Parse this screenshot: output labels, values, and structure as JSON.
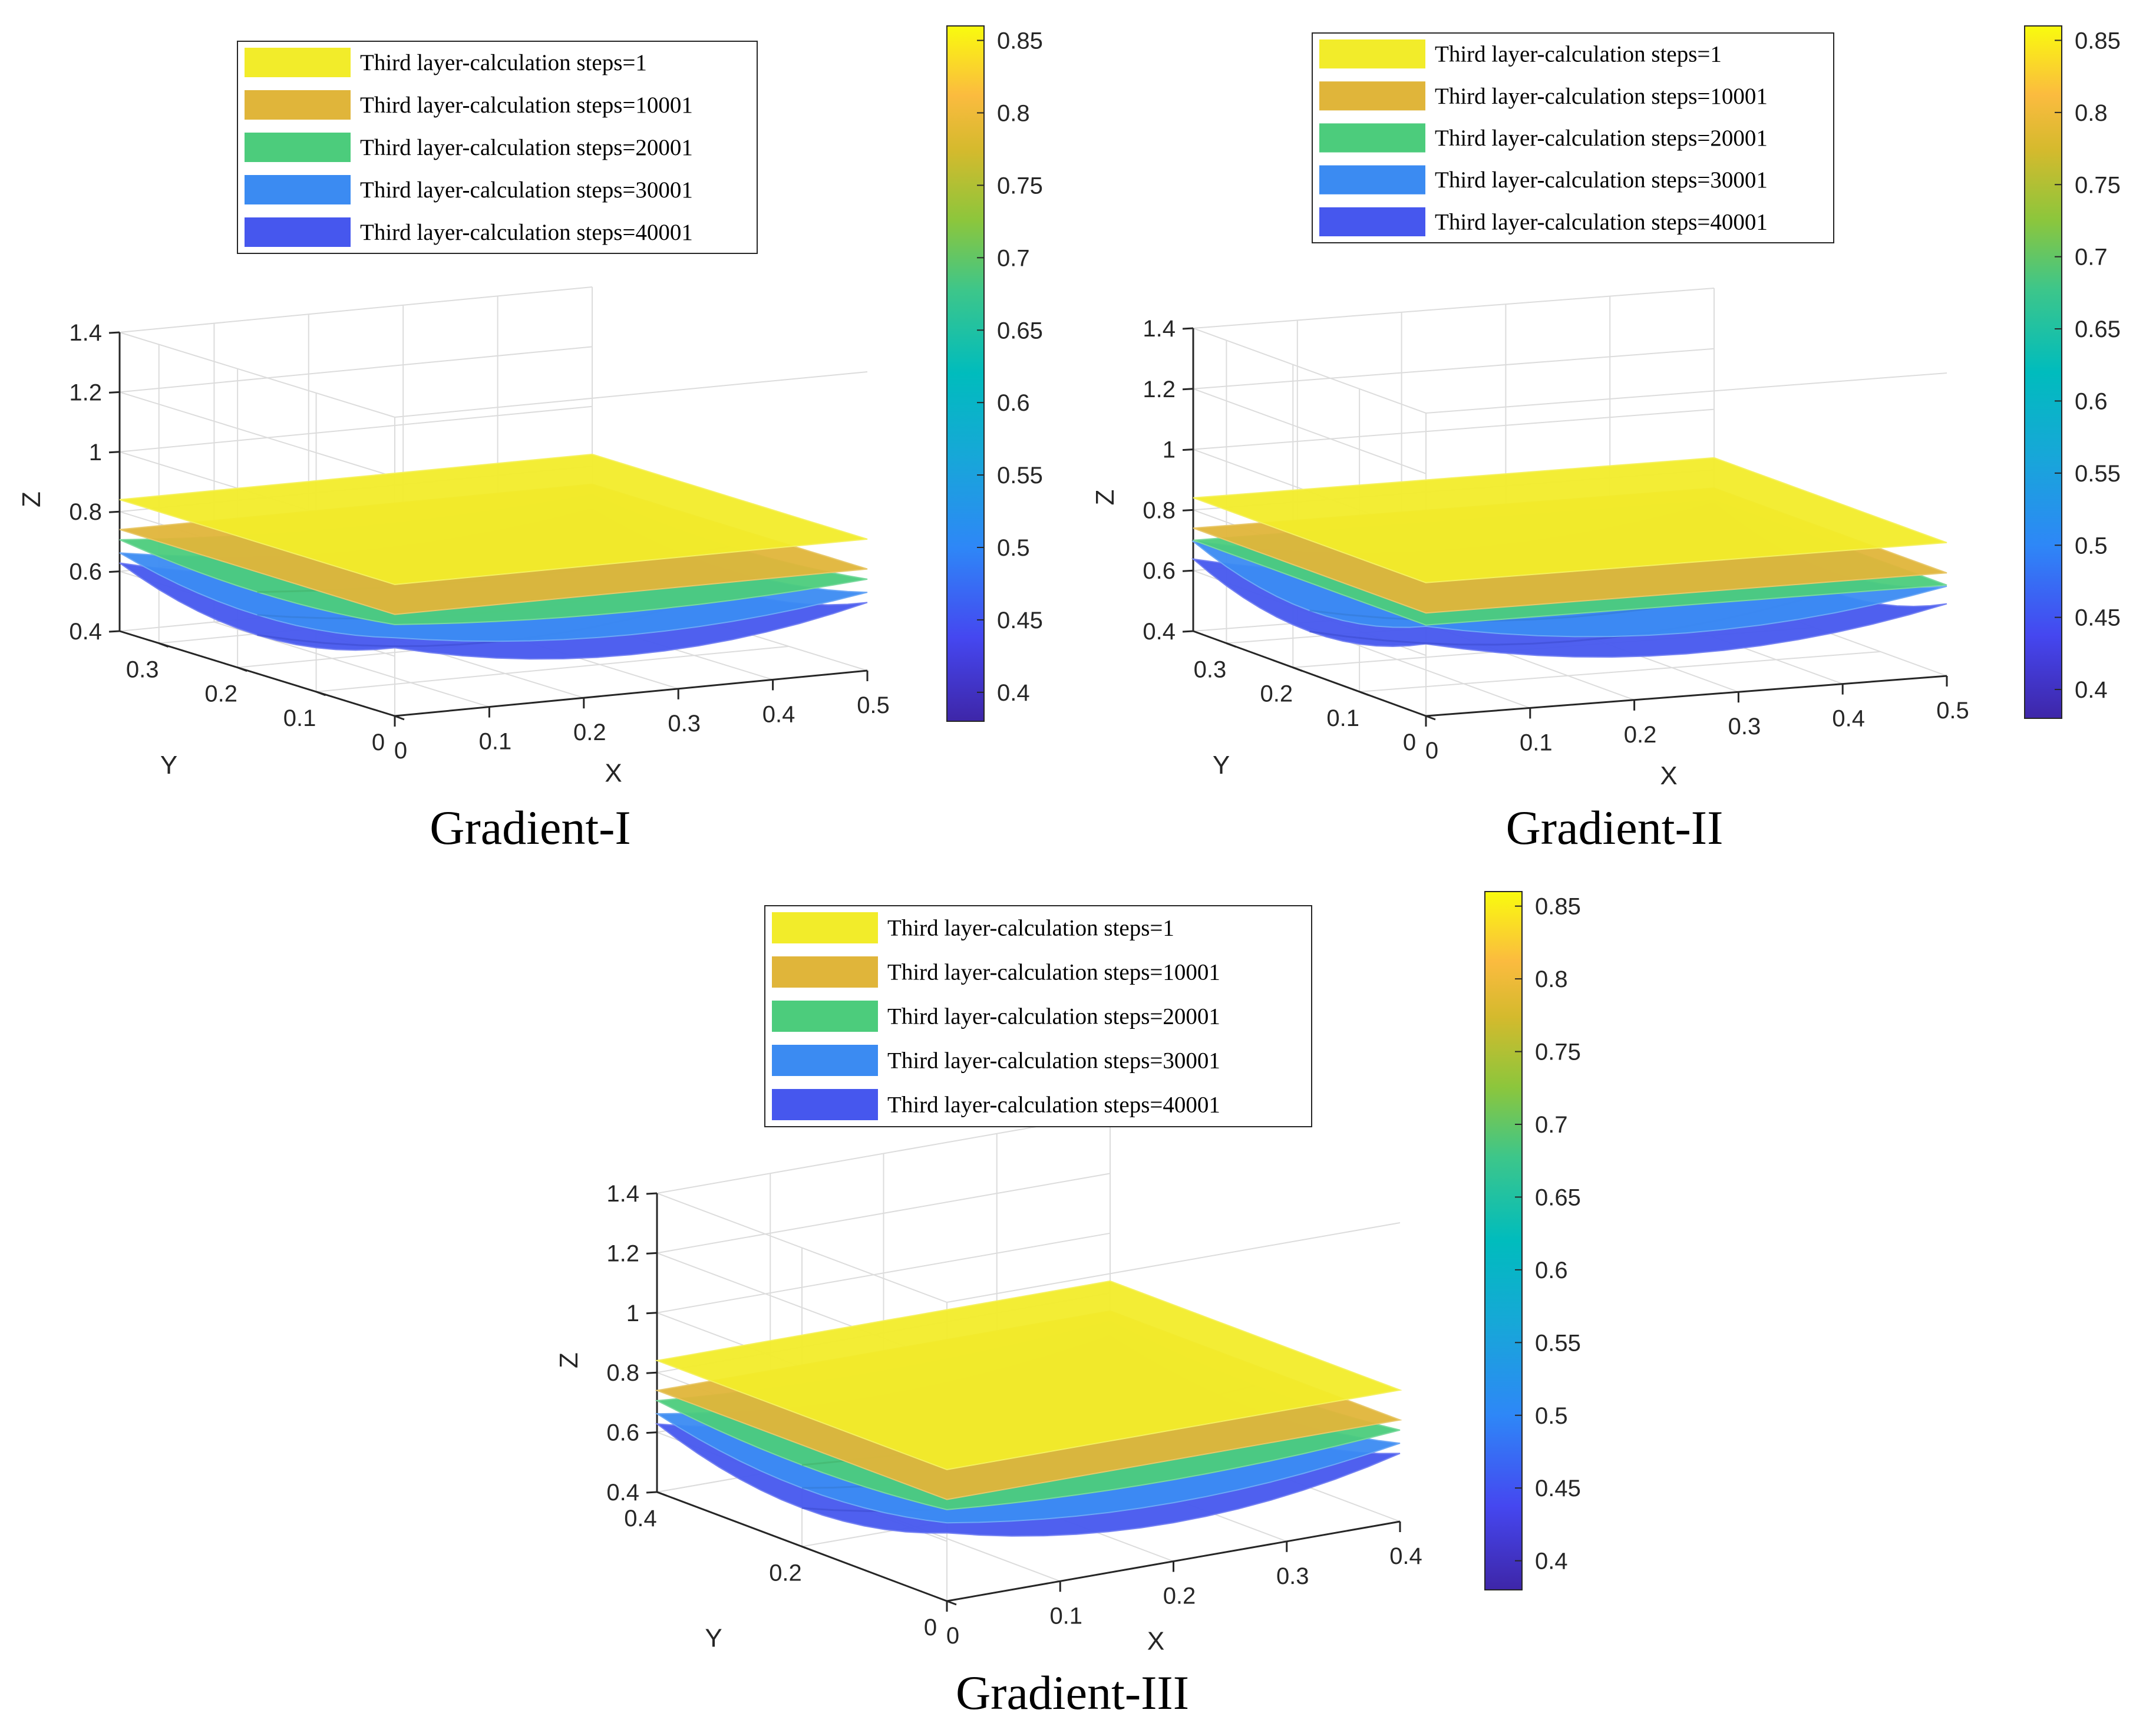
{
  "chart_data": [
    {
      "type": "surface3d",
      "caption": "Gradient-I",
      "xlabel": "X",
      "ylabel": "Y",
      "zlabel": "Z",
      "xlim": [
        0,
        0.5
      ],
      "ylim": [
        0,
        0.35
      ],
      "zlim": [
        0.4,
        1.4
      ],
      "xticks": [
        "0",
        "0.1",
        "0.2",
        "0.3",
        "0.4",
        "0.5"
      ],
      "yticks": [
        "0",
        "0.1",
        "0.2",
        "0.3"
      ],
      "zticks": [
        "0.4",
        "0.6",
        "0.8",
        "1",
        "1.2",
        "1.4"
      ],
      "colorbar": {
        "range": [
          0.38,
          0.86
        ],
        "ticks": [
          "0.4",
          "0.45",
          "0.5",
          "0.55",
          "0.6",
          "0.65",
          "0.7",
          "0.75",
          "0.8",
          "0.85"
        ]
      },
      "series": [
        {
          "name": "Third layer-calculation steps=1",
          "color": "#f2ec2a",
          "z_mean": 0.84,
          "z_min": 0.84
        },
        {
          "name": "Third layer-calculation steps=10001",
          "color": "#e0b53a",
          "z_mean": 0.74,
          "z_min": 0.73
        },
        {
          "name": "Third layer-calculation steps=20001",
          "color": "#4ccc7c",
          "z_mean": 0.67,
          "z_min": 0.64
        },
        {
          "name": "Third layer-calculation steps=30001",
          "color": "#3b8bf2",
          "z_mean": 0.59,
          "z_min": 0.53
        },
        {
          "name": "Third layer-calculation steps=40001",
          "color": "#4657ee",
          "z_mean": 0.52,
          "z_min": 0.43
        }
      ]
    },
    {
      "type": "surface3d",
      "caption": "Gradient-II",
      "xlabel": "X",
      "ylabel": "Y",
      "zlabel": "Z",
      "xlim": [
        0,
        0.5
      ],
      "ylim": [
        0,
        0.35
      ],
      "zlim": [
        0.4,
        1.4
      ],
      "xticks": [
        "0",
        "0.1",
        "0.2",
        "0.3",
        "0.4",
        "0.5"
      ],
      "yticks": [
        "0",
        "0.1",
        "0.2",
        "0.3"
      ],
      "zticks": [
        "0.4",
        "0.6",
        "0.8",
        "1",
        "1.2",
        "1.4"
      ],
      "colorbar": {
        "range": [
          0.38,
          0.86
        ],
        "ticks": [
          "0.4",
          "0.45",
          "0.5",
          "0.55",
          "0.6",
          "0.65",
          "0.7",
          "0.75",
          "0.8",
          "0.85"
        ]
      },
      "series": [
        {
          "name": "Third layer-calculation steps=1",
          "color": "#f2ec2a",
          "z_mean": 0.84,
          "z_min": 0.84
        },
        {
          "name": "Third layer-calculation steps=10001",
          "color": "#e0b53a",
          "z_mean": 0.74,
          "z_min": 0.73
        },
        {
          "name": "Third layer-calculation steps=20001",
          "color": "#4ccc7c",
          "z_mean": 0.7,
          "z_min": 0.69
        },
        {
          "name": "Third layer-calculation steps=30001",
          "color": "#3b8bf2",
          "z_mean": 0.6,
          "z_min": 0.52
        },
        {
          "name": "Third layer-calculation steps=40001",
          "color": "#4657ee",
          "z_mean": 0.53,
          "z_min": 0.44
        }
      ]
    },
    {
      "type": "surface3d",
      "caption": "Gradient-III",
      "xlabel": "X",
      "ylabel": "Y",
      "zlabel": "Z",
      "xlim": [
        0,
        0.4
      ],
      "ylim": [
        0,
        0.4
      ],
      "zlim": [
        0.4,
        1.4
      ],
      "xticks": [
        "0",
        "0.1",
        "0.2",
        "0.3",
        "0.4"
      ],
      "yticks": [
        "0",
        "0.2",
        "0.4"
      ],
      "zticks": [
        "0.4",
        "0.6",
        "0.8",
        "1",
        "1.2",
        "1.4"
      ],
      "colorbar": {
        "range": [
          0.38,
          0.86
        ],
        "ticks": [
          "0.4",
          "0.45",
          "0.5",
          "0.55",
          "0.6",
          "0.65",
          "0.7",
          "0.75",
          "0.8",
          "0.85"
        ]
      },
      "series": [
        {
          "name": "Third layer-calculation steps=1",
          "color": "#f2ec2a",
          "z_mean": 0.84,
          "z_min": 0.84
        },
        {
          "name": "Third layer-calculation steps=10001",
          "color": "#e0b53a",
          "z_mean": 0.74,
          "z_min": 0.73
        },
        {
          "name": "Third layer-calculation steps=20001",
          "color": "#4ccc7c",
          "z_mean": 0.67,
          "z_min": 0.64
        },
        {
          "name": "Third layer-calculation steps=30001",
          "color": "#3b8bf2",
          "z_mean": 0.59,
          "z_min": 0.53
        },
        {
          "name": "Third layer-calculation steps=40001",
          "color": "#4657ee",
          "z_mean": 0.52,
          "z_min": 0.43
        }
      ]
    }
  ]
}
